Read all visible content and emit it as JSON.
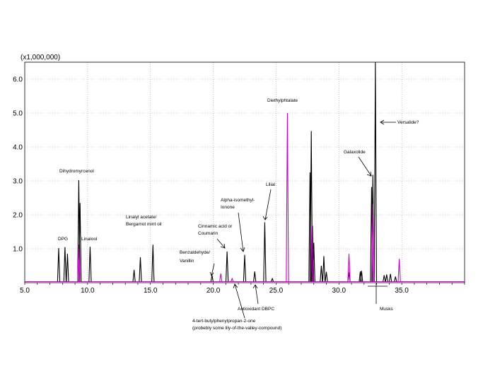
{
  "chart_data": {
    "type": "line",
    "title": "",
    "xlabel": "",
    "ylabel": "",
    "y_multiplier": "(x1,000,000)",
    "xlim": [
      5.0,
      40.0
    ],
    "ylim": [
      0.0,
      6.5
    ],
    "x_ticks": [
      5.0,
      10.0,
      15.0,
      20.0,
      25.0,
      30.0,
      35.0
    ],
    "x_tick_labels": [
      "5.0",
      "10.0",
      "15.0",
      "20.0",
      "25.0",
      "30.0",
      "35.0"
    ],
    "y_ticks": [
      1.0,
      2.0,
      3.0,
      4.0,
      5.0,
      6.0
    ],
    "y_tick_labels": [
      "1.0",
      "2.0",
      "3.0",
      "4.0",
      "5.0",
      "6.0"
    ],
    "grid": "dotted",
    "legend": "none",
    "series": [
      {
        "color": "#000000",
        "peaks": [
          [
            7.7,
            1.02
          ],
          [
            8.2,
            1.05
          ],
          [
            8.4,
            0.85
          ],
          [
            9.3,
            3.02
          ],
          [
            9.4,
            2.35
          ],
          [
            10.2,
            1.06
          ],
          [
            13.7,
            0.38
          ],
          [
            14.2,
            0.75
          ],
          [
            15.2,
            1.12
          ],
          [
            19.9,
            0.22
          ],
          [
            21.1,
            0.92
          ],
          [
            22.5,
            0.82
          ],
          [
            23.3,
            0.33
          ],
          [
            24.1,
            1.78
          ],
          [
            24.7,
            0.12
          ],
          [
            27.8,
            4.47
          ],
          [
            27.7,
            3.25
          ],
          [
            27.9,
            1.68
          ],
          [
            28.0,
            1.18
          ],
          [
            28.6,
            0.5
          ],
          [
            28.8,
            0.78
          ],
          [
            29.0,
            0.32
          ],
          [
            30.8,
            0.3
          ],
          [
            31.7,
            0.33
          ],
          [
            31.8,
            0.35
          ],
          [
            32.6,
            2.82
          ],
          [
            32.7,
            3.18
          ],
          [
            32.9,
            6.5
          ],
          [
            33.6,
            0.22
          ],
          [
            33.8,
            0.24
          ],
          [
            34.1,
            0.26
          ],
          [
            34.5,
            0.18
          ]
        ]
      },
      {
        "color": "#d000d0",
        "peaks": [
          [
            9.3,
            1.12
          ],
          [
            20.6,
            0.27
          ],
          [
            21.5,
            0.12
          ],
          [
            25.9,
            5.0
          ],
          [
            27.85,
            1.7
          ],
          [
            30.8,
            0.85
          ],
          [
            32.7,
            2.32
          ],
          [
            34.8,
            0.7
          ]
        ]
      }
    ],
    "annotations": [
      {
        "text": "DPG",
        "x": 7.7,
        "y": 1.02
      },
      {
        "text": "Dihydromyrcenol",
        "x": 9.3,
        "y": 3.02
      },
      {
        "text": "Linalool",
        "x": 10.2,
        "y": 1.06
      },
      {
        "text": "Linalyl acetate/ Bergamot mint oil",
        "x": 15.2,
        "y": 1.12
      },
      {
        "text": "Benzaldehyde/ Vanillin",
        "x": 19.9,
        "y": 0.22
      },
      {
        "text": "Cinnamic acid or Coumarin",
        "x": 21.1,
        "y": 0.92
      },
      {
        "text": "Alpha-isomethyl-Ionone",
        "x": 22.5,
        "y": 0.82
      },
      {
        "text": "Lilial",
        "x": 24.1,
        "y": 1.78
      },
      {
        "text": "Diethylphtalate",
        "x": 25.9,
        "y": 5.0
      },
      {
        "text": "Galaxolide",
        "x": 32.7,
        "y": 3.18
      },
      {
        "text": "Versalide?",
        "x": 32.9,
        "y": 4.8
      },
      {
        "text": "4-tert-butylphenylpropan-2-one (probebly some lily-of-the-valley-compound)",
        "x": 21.9,
        "y": 0.0
      },
      {
        "text": "Antioxidant DBPC",
        "x": 23.3,
        "y": 0.0
      },
      {
        "text": "Musks",
        "x": 32.9,
        "y": 0.0
      }
    ]
  },
  "labels": {
    "multiplier": "(x1,000,000)",
    "dpg": "DPG",
    "dihydromyrcenol": "Dihydromyrcenol",
    "linalool": "Linalool",
    "linalyl_1": "Linalyl acetate/",
    "linalyl_2": "Bergamot mint oil",
    "benz_1": "Benzaldehyde/",
    "benz_2": "Vanillin",
    "cinn_1": "Cinnamic acid or",
    "cinn_2": "Coumarin",
    "alpha_1": "Alpha-isomethyl-",
    "alpha_2": "Ionone",
    "lilial": "Lilial",
    "diethyl": "Diethylphtalate",
    "galaxolide": "Galaxolide",
    "versalide": "Versalide?",
    "butyl_1": "4-tert-butylphenylpropan-2-one",
    "butyl_2": "(probebly some lily-of-the-valley-compound)",
    "dbpc": "Antioxidant DBPC",
    "musks": "Musks"
  }
}
